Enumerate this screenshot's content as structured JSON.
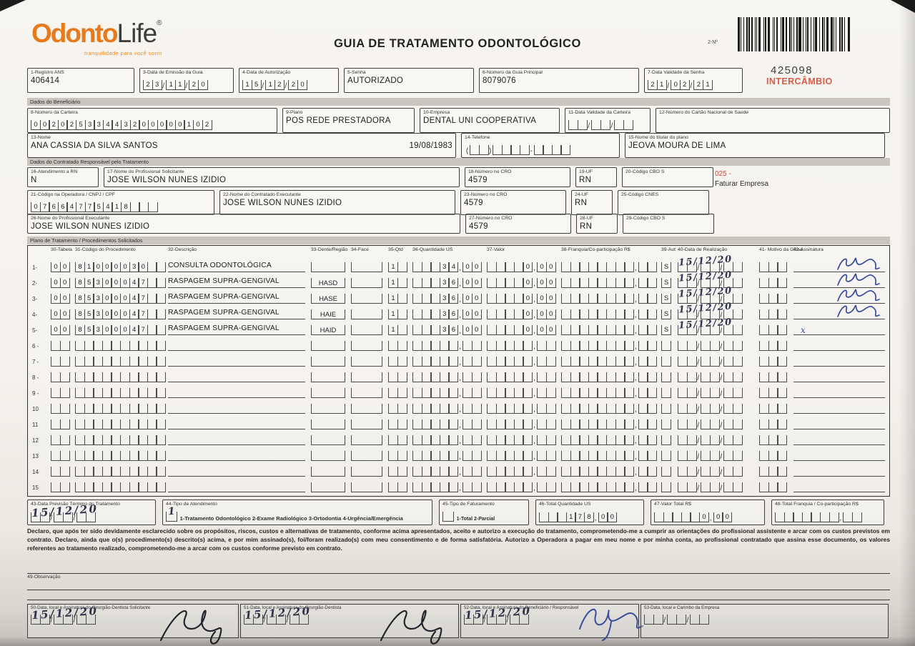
{
  "header": {
    "logo": {
      "part1": "Odonto",
      "part2": "Life",
      "reg": "®",
      "tagline": "tranquilidade para você sorrir"
    },
    "title": "GUIA DE TRATAMENTO ODONTOLÓGICO",
    "barcode_label": "2-Nº",
    "guide_number": "425098",
    "stamp": "INTERCÂMBIO"
  },
  "colors": {
    "accent_orange": "#E87A1E",
    "stamp_red": "#D95C4A",
    "note_red": "#C94A3A",
    "ink_blue": "#3A4A9E",
    "ink_black": "#23232C"
  },
  "top_fields": {
    "registro_ans": {
      "label": "1-Registro ANS",
      "value": "406414"
    },
    "data_emissao": {
      "label": "3-Data de Emissão da Guia",
      "comb": "23/11/20"
    },
    "data_autorizacao": {
      "label": "4-Data de Autorização",
      "comb": "15/12/20"
    },
    "senha": {
      "label": "5-Senha",
      "value": "AUTORIZADO"
    },
    "numero_guia_principal": {
      "label": "6-Número da Guia Principal",
      "value": "8079076"
    },
    "validade_senha": {
      "label": "7-Data Validade da Senha",
      "comb": "21/02/21"
    }
  },
  "sections": {
    "beneficiario": "Dados do Beneficiário",
    "contratado": "Dados do Contratado Responsável pelo Tratamento",
    "plano": "Plano de Tratamento / Procedimentos Solicitados"
  },
  "beneficiario": {
    "carteira": {
      "label": "8-Número da Carteira",
      "comb": "00202533443200000102"
    },
    "plano": {
      "label": "9-Plano",
      "value": "POS REDE PRESTADORA"
    },
    "empresa": {
      "label": "10-Empresa",
      "value": "DENTAL UNI  COOPERATIVA"
    },
    "validade_carteira": {
      "label": "11-Data Validade da Carteira",
      "comb": "  /  /  "
    },
    "cartao_nacional": {
      "label": "12-Número do Cartão Nacional de Saúde",
      "value": ""
    },
    "nome": {
      "label": "13-Nome",
      "value": "ANA CASSIA DA SILVA SANTOS",
      "nascimento": "19/08/1983"
    },
    "telefone": {
      "label": "14-Telefone",
      "comb": "(  )    -    "
    },
    "titular": {
      "label": "15-Nome do titular do plano",
      "value": "JEOVA MOURA DE LIMA"
    }
  },
  "contratado": {
    "atendimento_rn": {
      "label": "16-Atendimento a RN",
      "value": "N"
    },
    "solicitante": {
      "label": "17-Nome do Profissional Solicitante",
      "value": "JOSE WILSON NUNES IZIDIO"
    },
    "cro_solicitante": {
      "label": "18-Número no CRO",
      "value": "4579"
    },
    "uf_solicitante": {
      "label": "19-UF",
      "value": "RN"
    },
    "cbo_solicitante": {
      "label": "20-Código CBO S",
      "value": ""
    },
    "nota": {
      "codigo": "025 -",
      "texto": "Faturar Empresa"
    },
    "codigo_operadora": {
      "label": "21-Código na Operadora / CNPJ / CPF",
      "comb": "07664775418   "
    },
    "executante": {
      "label": "22-Nome do Contratado Executante",
      "value": "JOSE WILSON NUNES IZIDIO"
    },
    "cro_executante": {
      "label": "23-Número no CRO",
      "value": "4579"
    },
    "uf_executante": {
      "label": "24-UF",
      "value": "RN"
    },
    "cnes": {
      "label": "25-Código CNES",
      "value": ""
    },
    "prof_executante": {
      "label": "26-Nome do Profissional Executante",
      "value": "JOSE WILSON NUNES IZIDIO"
    },
    "cro_prof": {
      "label": "27-Número no CRO",
      "value": "4579"
    },
    "uf_prof": {
      "label": "28-UF",
      "value": "RN"
    },
    "cbo_prof": {
      "label": "29-Código CBO S",
      "value": ""
    }
  },
  "table": {
    "headers": {
      "tabela": "30-Tabela",
      "codigo": "31-Código do Procedimento",
      "descricao": "32-Descrição",
      "dente": "33-Dente/Região",
      "face": "34-Face",
      "qtd": "35-Qtd",
      "us": "36-Quantidade US",
      "valor": "37-Valor",
      "franquia": "38-Franquia/Co-participação R$",
      "aut": "39-Aut",
      "data": "40-Data de Realização",
      "motivo": "41- Motivo da Glosa",
      "assinatura": "42-Assinatura"
    },
    "rows": [
      {
        "n": "1-",
        "tab": "00",
        "cod": "81000030  ",
        "desc": "CONSULTA ODONTOLÓGICA",
        "dente": "",
        "face": "",
        "qtd": "1 ",
        "us": "   34,00",
        "valor": "    0,00",
        "franq": "        ,  ",
        "aut": "S",
        "data": "15/12/20",
        "hand": true,
        "motivo": "   ",
        "sig": "scribble"
      },
      {
        "n": "2-",
        "tab": "00",
        "cod": "85300047  ",
        "desc": "RASPAGEM SUPRA-GENGIVAL",
        "dente": "HASD",
        "face": "",
        "qtd": "1 ",
        "us": "   36,00",
        "valor": "    0,00",
        "franq": "        ,  ",
        "aut": "S",
        "data": "15/12/20",
        "hand": true,
        "motivo": "   ",
        "sig": "scribble"
      },
      {
        "n": "3-",
        "tab": "00",
        "cod": "85300047  ",
        "desc": "RASPAGEM SUPRA-GENGIVAL",
        "dente": "HASE",
        "face": "",
        "qtd": "1 ",
        "us": "   36,00",
        "valor": "    0,00",
        "franq": "        ,  ",
        "aut": "S",
        "data": "15/12/20",
        "hand": true,
        "motivo": "   ",
        "sig": "scribble"
      },
      {
        "n": "4-",
        "tab": "00",
        "cod": "85300047  ",
        "desc": "RASPAGEM SUPRA-GENGIVAL",
        "dente": "HAIE",
        "face": "",
        "qtd": "1 ",
        "us": "   36,00",
        "valor": "    0,00",
        "franq": "        ,  ",
        "aut": "S",
        "data": "15/12/20",
        "hand": true,
        "motivo": "   ",
        "sig": "scribble"
      },
      {
        "n": "5-",
        "tab": "00",
        "cod": "85300047  ",
        "desc": "RASPAGEM SUPRA-GENGIVAL",
        "dente": "HAID",
        "face": "",
        "qtd": "1 ",
        "us": "   36,00",
        "valor": "    0,00",
        "franq": "        ,  ",
        "aut": "S",
        "data": "15/12/20",
        "hand": true,
        "motivo": "   ",
        "sig": "x"
      },
      {
        "n": "6 -",
        "tab": "  ",
        "cod": "          ",
        "desc": "",
        "dente": "",
        "face": "",
        "qtd": "  ",
        "us": "     ,  ",
        "valor": "     ,  ",
        "franq": "        ,  ",
        "aut": " ",
        "data": "  /  /  ",
        "hand": false,
        "motivo": "   ",
        "sig": ""
      },
      {
        "n": "7 -",
        "tab": "  ",
        "cod": "          ",
        "desc": "",
        "dente": "",
        "face": "",
        "qtd": "  ",
        "us": "     ,  ",
        "valor": "     ,  ",
        "franq": "        ,  ",
        "aut": " ",
        "data": "  /  /  ",
        "hand": false,
        "motivo": "   ",
        "sig": ""
      },
      {
        "n": "8 -",
        "tab": "  ",
        "cod": "          ",
        "desc": "",
        "dente": "",
        "face": "",
        "qtd": "  ",
        "us": "     ,  ",
        "valor": "     ,  ",
        "franq": "        ,  ",
        "aut": " ",
        "data": "  /  /  ",
        "hand": false,
        "motivo": "   ",
        "sig": ""
      },
      {
        "n": "9 -",
        "tab": "  ",
        "cod": "          ",
        "desc": "",
        "dente": "",
        "face": "",
        "qtd": "  ",
        "us": "     ,  ",
        "valor": "     ,  ",
        "franq": "        ,  ",
        "aut": " ",
        "data": "  /  /  ",
        "hand": false,
        "motivo": "   ",
        "sig": ""
      },
      {
        "n": "10",
        "tab": "  ",
        "cod": "          ",
        "desc": "",
        "dente": "",
        "face": "",
        "qtd": "  ",
        "us": "     ,  ",
        "valor": "     ,  ",
        "franq": "        ,  ",
        "aut": " ",
        "data": "  /  /  ",
        "hand": false,
        "motivo": "   ",
        "sig": ""
      },
      {
        "n": "11",
        "tab": "  ",
        "cod": "          ",
        "desc": "",
        "dente": "",
        "face": "",
        "qtd": "  ",
        "us": "     ,  ",
        "valor": "     ,  ",
        "franq": "        ,  ",
        "aut": " ",
        "data": "  /  /  ",
        "hand": false,
        "motivo": "   ",
        "sig": ""
      },
      {
        "n": "12",
        "tab": "  ",
        "cod": "          ",
        "desc": "",
        "dente": "",
        "face": "",
        "qtd": "  ",
        "us": "     ,  ",
        "valor": "     ,  ",
        "franq": "        ,  ",
        "aut": " ",
        "data": "  /  /  ",
        "hand": false,
        "motivo": "   ",
        "sig": ""
      },
      {
        "n": "13",
        "tab": "  ",
        "cod": "          ",
        "desc": "",
        "dente": "",
        "face": "",
        "qtd": "  ",
        "us": "     ,  ",
        "valor": "     ,  ",
        "franq": "        ,  ",
        "aut": " ",
        "data": "  /  /  ",
        "hand": false,
        "motivo": "   ",
        "sig": ""
      },
      {
        "n": "14",
        "tab": "  ",
        "cod": "          ",
        "desc": "",
        "dente": "",
        "face": "",
        "qtd": "  ",
        "us": "     ,  ",
        "valor": "     ,  ",
        "franq": "        ,  ",
        "aut": " ",
        "data": "  /  /  ",
        "hand": false,
        "motivo": "   ",
        "sig": ""
      },
      {
        "n": "15",
        "tab": "  ",
        "cod": "          ",
        "desc": "",
        "dente": "",
        "face": "",
        "qtd": "  ",
        "us": "     ,  ",
        "valor": "     ,  ",
        "franq": "        ,  ",
        "aut": " ",
        "data": "  /  /  ",
        "hand": false,
        "motivo": "   ",
        "sig": ""
      }
    ]
  },
  "totals": {
    "previsao_termino": {
      "label": "43-Data Previsão Término do Tratamento",
      "comb": "15/12/20"
    },
    "tipo_atendimento": {
      "label": "44-Tipo de Atendimento",
      "checkbox": "1",
      "options": "1-Tratamento Odontológico  2-Exame Radiológico  3-Ortodontia  4-Urgência/Emergência"
    },
    "tipo_faturamento": {
      "label": "45-Tipo de Faturamento",
      "checkbox": "",
      "options": "1-Total  2-Parcial"
    },
    "total_us": {
      "label": "46-Total Quantidade US",
      "comb": "   178,00"
    },
    "valor_total": {
      "label": "47-Valor Total R$",
      "comb": "     0,00"
    },
    "total_franquia": {
      "label": "48-Total Franquia / Co-participação R$",
      "comb": "       ,  "
    }
  },
  "declaracao": "Declaro, que após ter sido devidamente esclarecido sobre os propósitos, riscos, custos e alternativas de tratamento, conforme acima apresentados, aceito e autorizo a execução do tratamento, comprometendo-me a cumprir as orientações do profissional assistente e arcar com os custos previstos em contrato. Declaro, ainda que o(s) procedimento(s) descrito(s) acima, e por mim assinado(s), foi/foram realizado(s) com meu consentimento e de forma satisfatória. Autorizo a Operadora a pagar em meu nome e por minha conta, ao profissional contratado que assina esse documento, os valores referentes ao tratamento realizado, comprometendo-me a arcar com os custos conforme previsto em contrato.",
  "observacao": {
    "label": "49-Observação"
  },
  "assinaturas": {
    "solicitante": {
      "label": "50-Data, local e Assinatura do Cirurgião-Dentista Solicitante",
      "comb": "15/12/20",
      "sig": "dentist"
    },
    "dentista": {
      "label": "51-Data, local e Assinatura do Cirurgião-Dentista",
      "comb": "15/12/20",
      "sig": "dentist"
    },
    "beneficiario": {
      "label": "52-Data, local e Assinatura do Beneficiário / Responsável",
      "comb": "15/12/20",
      "sig": "beneficiary"
    },
    "empresa": {
      "label": "53-Data, local e Carimbo da Empresa",
      "comb": "  /  /  "
    }
  }
}
